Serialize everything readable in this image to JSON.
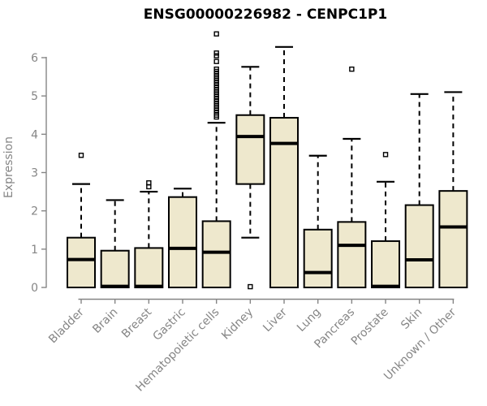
{
  "page": {
    "background": "#ffffff"
  },
  "chart_data": {
    "type": "boxplot",
    "title": "ENSG00000226982 - CENPC1P1",
    "ylabel": "Expression",
    "xlabel": "",
    "ylim": [
      0,
      6.7
    ],
    "y_ticks": [
      0,
      1,
      2,
      3,
      4,
      5,
      6
    ],
    "grid": false,
    "legend": null,
    "categories": [
      "Bladder",
      "Brain",
      "Breast",
      "Gastric",
      "Hematopoietic cells",
      "Kidney",
      "Liver",
      "Lung",
      "Pancreas",
      "Prostate",
      "Skin",
      "Unknown / Other"
    ],
    "series": [
      {
        "name": "Bladder",
        "whisker_low": 0,
        "q1": 0,
        "median": 0.73,
        "q3": 1.3,
        "whisker_high": 2.7,
        "outliers": [
          3.45
        ]
      },
      {
        "name": "Brain",
        "whisker_low": 0,
        "q1": 0,
        "median": 0.03,
        "q3": 0.96,
        "whisker_high": 2.28,
        "outliers": []
      },
      {
        "name": "Breast",
        "whisker_low": 0,
        "q1": 0,
        "median": 0.03,
        "q3": 1.03,
        "whisker_high": 2.5,
        "outliers": [
          2.63,
          2.73
        ]
      },
      {
        "name": "Gastric",
        "whisker_low": 0,
        "q1": 0,
        "median": 1.02,
        "q3": 2.36,
        "whisker_high": 2.58,
        "outliers": []
      },
      {
        "name": "Hematopoietic cells",
        "whisker_low": 0,
        "q1": 0,
        "median": 0.92,
        "q3": 1.73,
        "whisker_high": 4.3,
        "outliers": [
          4.45,
          4.5,
          4.56,
          4.62,
          4.68,
          4.74,
          4.8,
          4.86,
          4.92,
          4.98,
          5.04,
          5.1,
          5.16,
          5.22,
          5.28,
          5.34,
          5.4,
          5.46,
          5.52,
          5.58,
          5.64,
          5.7,
          5.9,
          6.05,
          6.12,
          6.62
        ]
      },
      {
        "name": "Kidney",
        "whisker_low": 1.3,
        "q1": 2.7,
        "median": 3.94,
        "q3": 4.5,
        "whisker_high": 5.76,
        "outliers": [
          0.02
        ]
      },
      {
        "name": "Liver",
        "whisker_low": 0,
        "q1": 0,
        "median": 3.76,
        "q3": 4.43,
        "whisker_high": 6.28,
        "outliers": []
      },
      {
        "name": "Lung",
        "whisker_low": 0,
        "q1": 0,
        "median": 0.39,
        "q3": 1.51,
        "whisker_high": 3.44,
        "outliers": []
      },
      {
        "name": "Pancreas",
        "whisker_low": 0,
        "q1": 0,
        "median": 1.1,
        "q3": 1.71,
        "whisker_high": 3.88,
        "outliers": [
          5.7
        ]
      },
      {
        "name": "Prostate",
        "whisker_low": 0,
        "q1": 0,
        "median": 0.03,
        "q3": 1.21,
        "whisker_high": 2.76,
        "outliers": [
          3.47
        ]
      },
      {
        "name": "Skin",
        "whisker_low": 0,
        "q1": 0,
        "median": 0.72,
        "q3": 2.15,
        "whisker_high": 5.05,
        "outliers": []
      },
      {
        "name": "Unknown / Other",
        "whisker_low": 0,
        "q1": 0,
        "median": 1.58,
        "q3": 2.52,
        "whisker_high": 5.1,
        "outliers": []
      }
    ],
    "colors": {
      "box_fill": "#EEE8CD",
      "box_stroke": "#000000",
      "median": "#000000",
      "whisker": "#000000",
      "outlier": "#000000",
      "axis": "#858585",
      "tick_label": "#858585",
      "title": "#000000"
    }
  }
}
